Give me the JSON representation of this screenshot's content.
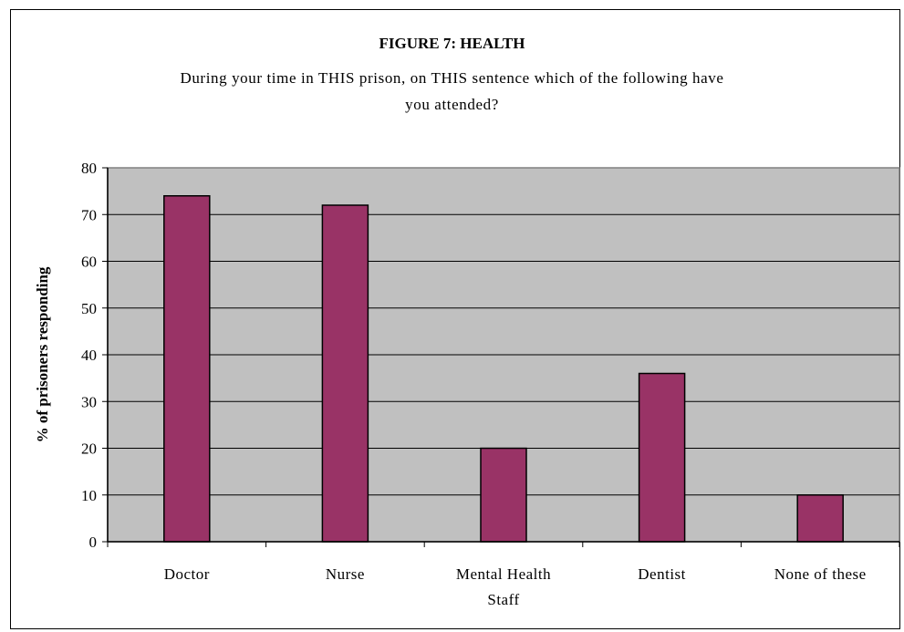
{
  "chart_data": {
    "type": "bar",
    "title": "FIGURE 7: HEALTH",
    "subtitle_lines": [
      "During your time in THIS prison, on THIS sentence which of the following have",
      "you attended?"
    ],
    "ylabel": "% of prisoners responding",
    "xlabel": "",
    "categories": [
      [
        "Doctor"
      ],
      [
        "Nurse"
      ],
      [
        "Mental Health",
        "Staff"
      ],
      [
        "Dentist"
      ],
      [
        "None of these"
      ]
    ],
    "values": [
      74,
      72,
      20,
      36,
      10
    ],
    "ylim": [
      0,
      80
    ],
    "yticks": [
      0,
      10,
      20,
      30,
      40,
      50,
      60,
      70,
      80
    ],
    "grid": true,
    "legend": "none",
    "colors": {
      "bar": "#993366",
      "plot_background": "#c0c0c0",
      "gridline": "#000000",
      "plot_border": "#808080"
    }
  }
}
